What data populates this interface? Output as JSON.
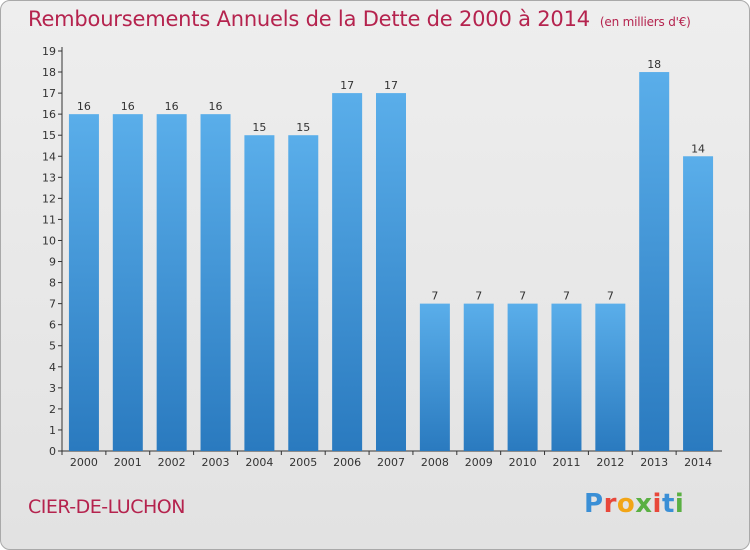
{
  "header": {
    "title": "Remboursements Annuels de la Dette de 2000 à 2014",
    "subtitle": "(en milliers d'€)"
  },
  "footer": {
    "town": "CIER-DE-LUCHON",
    "logo": {
      "letters": [
        "P",
        "r",
        "o",
        "x",
        "i",
        "t",
        "i"
      ],
      "colors": [
        "#3a8fd6",
        "#e8473a",
        "#f2a516",
        "#5ab043",
        "#e8473a",
        "#3a8fd6",
        "#5ab043"
      ]
    }
  },
  "colors": {
    "bar_top": "#5aaeea",
    "bar_bottom": "#2a7abf",
    "axis": "#333333",
    "title": "#b5234e"
  },
  "chart_data": {
    "type": "bar",
    "title": "Remboursements Annuels de la Dette de 2000 à 2014",
    "subtitle": "(en milliers d'€)",
    "categories": [
      "2000",
      "2001",
      "2002",
      "2003",
      "2004",
      "2005",
      "2006",
      "2007",
      "2008",
      "2009",
      "2010",
      "2011",
      "2012",
      "2013",
      "2014"
    ],
    "values": [
      16,
      16,
      16,
      16,
      15,
      15,
      17,
      17,
      7,
      7,
      7,
      7,
      7,
      18,
      14
    ],
    "ylim": [
      0,
      19
    ],
    "yticks": [
      0,
      1,
      2,
      3,
      4,
      5,
      6,
      7,
      8,
      9,
      10,
      11,
      12,
      13,
      14,
      15,
      16,
      17,
      18,
      19
    ],
    "xlabel": "",
    "ylabel": "",
    "grid": false,
    "legend": "none"
  }
}
